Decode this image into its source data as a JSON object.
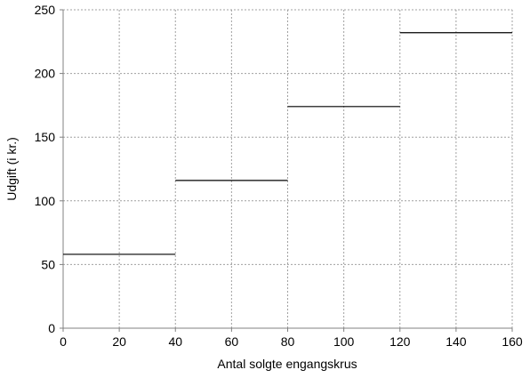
{
  "chart_data": {
    "type": "line",
    "title": "",
    "xlabel": "Antal solgte engangskrus",
    "ylabel": "Udgift (i kr.)",
    "xlim": [
      0,
      160
    ],
    "ylim": [
      0,
      250
    ],
    "x_ticks": [
      "0",
      "20",
      "40",
      "60",
      "80",
      "100",
      "120",
      "140",
      "160"
    ],
    "y_ticks": [
      "0",
      "50",
      "100",
      "150",
      "200",
      "250"
    ],
    "grid": true,
    "series": [
      {
        "style": "step",
        "color": "#000000",
        "segments": [
          {
            "x_start": 0,
            "x_end": 40,
            "y": 58
          },
          {
            "x_start": 40,
            "x_end": 80,
            "y": 116
          },
          {
            "x_start": 80,
            "x_end": 120,
            "y": 174
          },
          {
            "x_start": 120,
            "x_end": 160,
            "y": 232
          }
        ]
      }
    ]
  }
}
